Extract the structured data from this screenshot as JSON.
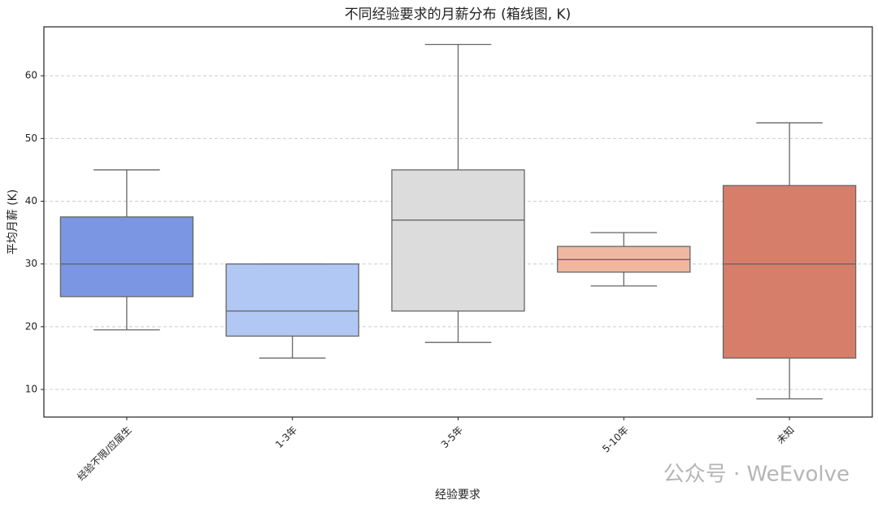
{
  "chart_data": {
    "type": "box",
    "title": "不同经验要求的月薪分布 (箱线图, K)",
    "x_label": "经验要求",
    "y_label": "平均月薪 (K)",
    "categories": [
      "经验不限/应届生",
      "1-3年",
      "3-5年",
      "5-10年",
      "未知"
    ],
    "whislo": [
      19.5,
      15,
      17.5,
      26.5,
      8.5
    ],
    "q1": [
      24.8,
      18.5,
      22.5,
      28.7,
      15
    ],
    "median": [
      30,
      22.5,
      37,
      30.7,
      30
    ],
    "q3": [
      37.5,
      30,
      45,
      32.8,
      42.5
    ],
    "whishi": [
      45,
      30,
      65,
      35,
      52.5
    ],
    "colors": [
      "#7b96e3",
      "#b1c8f4",
      "#dcdcdc",
      "#f0b7a0",
      "#d77e6a"
    ],
    "ylim": [
      5.6,
      67.8
    ],
    "yticks": [
      10,
      20,
      30,
      40,
      50,
      60
    ],
    "grid": true
  },
  "watermark": "公众号 · WeEvolve"
}
